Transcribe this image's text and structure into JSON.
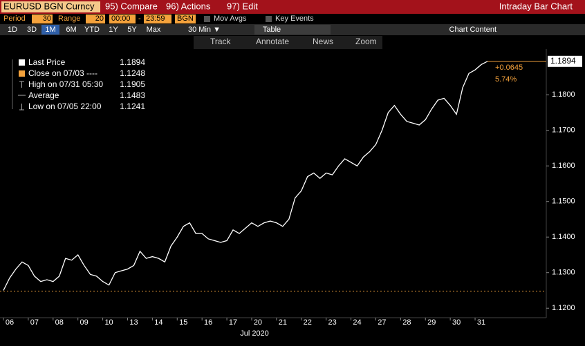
{
  "toolbar": {
    "security": "EURUSD BGN Curncy",
    "compare": "95) Compare",
    "actions": "96) Actions",
    "edit": "97) Edit",
    "window_title": "Intraday Bar Chart",
    "period_label": "Period",
    "period": "30",
    "range_label": "Range",
    "range": "20",
    "start": "00:00",
    "dash": "-",
    "end": "23:59",
    "source": "BGN",
    "mov_avgs": "Mov Avgs",
    "key_events": "Key Events",
    "ranges": [
      "1D",
      "3D",
      "1M",
      "6M",
      "YTD",
      "1Y",
      "5Y",
      "Max"
    ],
    "interval": "30 Min ▼",
    "table": "Table",
    "chart_content": "Chart Content",
    "tools": [
      "Track",
      "Annotate",
      "News",
      "Zoom"
    ]
  },
  "chart_data": {
    "type": "line",
    "x_label": "Jul 2020",
    "categories": [
      null,
      "06",
      null,
      null,
      null,
      "07",
      null,
      null,
      null,
      "08",
      null,
      null,
      null,
      "09",
      null,
      null,
      null,
      "10",
      null,
      null,
      null,
      "13",
      null,
      null,
      null,
      "14",
      null,
      null,
      null,
      "15",
      null,
      null,
      null,
      "16",
      null,
      null,
      null,
      "17",
      null,
      null,
      null,
      "20",
      null,
      null,
      null,
      "21",
      null,
      null,
      null,
      "22",
      null,
      null,
      null,
      "23",
      null,
      null,
      null,
      "24",
      null,
      null,
      null,
      "27",
      null,
      null,
      null,
      "28",
      null,
      null,
      null,
      "29",
      null,
      null,
      null,
      "30",
      null,
      null,
      null,
      "31",
      null
    ],
    "series": [
      {
        "name": "Last Price",
        "color": "#ffffff",
        "values": [
          1.125,
          1.1285,
          1.131,
          1.133,
          1.132,
          1.129,
          1.1275,
          1.128,
          1.1275,
          1.129,
          1.134,
          1.1335,
          1.135,
          1.132,
          1.1295,
          1.129,
          1.1275,
          1.1265,
          1.13,
          1.1305,
          1.131,
          1.132,
          1.136,
          1.134,
          1.1345,
          1.134,
          1.133,
          1.1375,
          1.14,
          1.143,
          1.144,
          1.141,
          1.141,
          1.1395,
          1.139,
          1.1385,
          1.139,
          1.142,
          1.141,
          1.1425,
          1.144,
          1.143,
          1.144,
          1.1445,
          1.144,
          1.143,
          1.145,
          1.151,
          1.153,
          1.157,
          1.158,
          1.1565,
          1.158,
          1.1575,
          1.16,
          1.162,
          1.161,
          1.16,
          1.1625,
          1.164,
          1.166,
          1.17,
          1.175,
          1.177,
          1.1745,
          1.1725,
          1.172,
          1.1715,
          1.173,
          1.176,
          1.1785,
          1.179,
          1.177,
          1.1745,
          1.182,
          1.186,
          1.187,
          1.1885,
          1.1894
        ]
      }
    ],
    "legend": [
      {
        "label": "Last Price",
        "value": 1.1894
      },
      {
        "label": "Close on 07/03 ----",
        "value": 1.1248
      },
      {
        "label": "High on 07/31 05:30",
        "value": 1.1905
      },
      {
        "label": "Average",
        "value": 1.1483
      },
      {
        "label": "Low on 07/05 22:00",
        "value": 1.1241
      }
    ],
    "change": "+0.0645",
    "change_pct": "5.74%",
    "close_color": "#f4a23c",
    "ylim": [
      1.1183,
      1.1915
    ],
    "yticks": [
      {
        "value": 1.12,
        "label": "1.1200"
      },
      {
        "value": 1.13,
        "label": "1.1300"
      },
      {
        "value": 1.14,
        "label": "1.1400"
      },
      {
        "value": 1.15,
        "label": "1.1500"
      },
      {
        "value": 1.16,
        "label": "1.1600"
      },
      {
        "value": 1.17,
        "label": "1.1700"
      },
      {
        "value": 1.18,
        "label": "1.1800"
      }
    ]
  }
}
